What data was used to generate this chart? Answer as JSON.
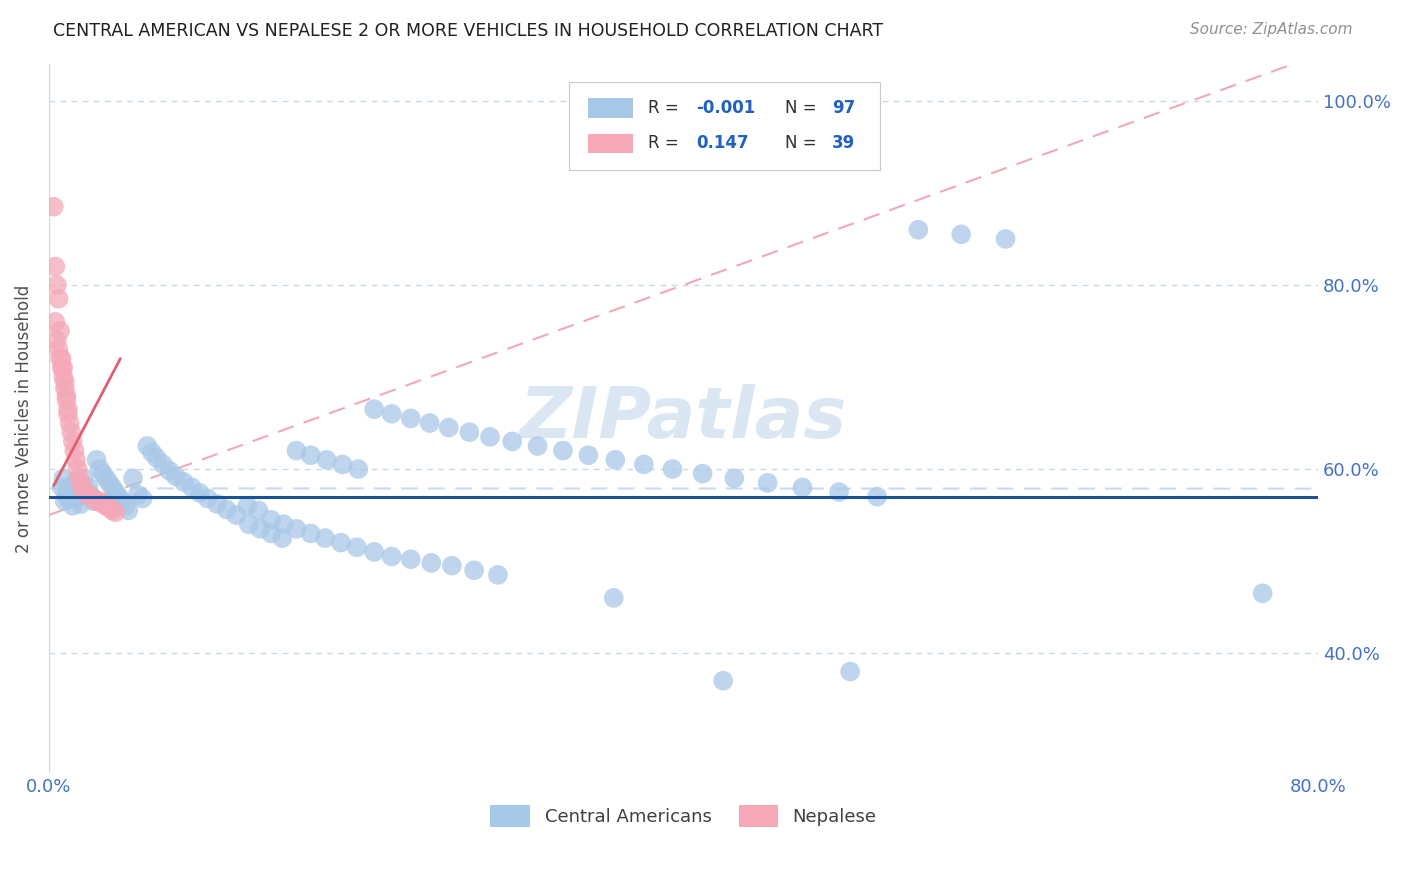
{
  "title": "CENTRAL AMERICAN VS NEPALESE 2 OR MORE VEHICLES IN HOUSEHOLD CORRELATION CHART",
  "source": "Source: ZipAtlas.com",
  "ylabel": "2 or more Vehicles in Household",
  "watermark": "ZIPatlas",
  "xmin": 0.0,
  "xmax": 0.8,
  "ymin": 0.27,
  "ymax": 1.04,
  "x_tick_positions": [
    0.0,
    0.1,
    0.2,
    0.3,
    0.4,
    0.5,
    0.6,
    0.7,
    0.8
  ],
  "x_tick_labels": [
    "0.0%",
    "",
    "",
    "",
    "",
    "",
    "",
    "",
    "80.0%"
  ],
  "y_tick_positions": [
    0.4,
    0.6,
    0.8,
    1.0
  ],
  "y_tick_labels": [
    "40.0%",
    "60.0%",
    "80.0%",
    "100.0%"
  ],
  "color_blue": "#a8c8e8",
  "color_pink": "#f4a8b8",
  "color_hline": "#1a5296",
  "color_trendline_blue": "#c0d8f0",
  "color_trendline_pink": "#f0a0b0",
  "color_axis_labels": "#4472c4",
  "hline_y": 0.57,
  "blue_R": -0.001,
  "blue_N": 97,
  "pink_R": 0.147,
  "pink_N": 39,
  "blue_x": [
    0.008,
    0.009,
    0.01,
    0.011,
    0.012,
    0.013,
    0.014,
    0.015,
    0.016,
    0.017,
    0.018,
    0.019,
    0.02,
    0.022,
    0.024,
    0.025,
    0.027,
    0.028,
    0.03,
    0.032,
    0.034,
    0.036,
    0.038,
    0.04,
    0.042,
    0.044,
    0.046,
    0.048,
    0.05,
    0.053,
    0.056,
    0.059,
    0.062,
    0.065,
    0.068,
    0.072,
    0.076,
    0.08,
    0.085,
    0.09,
    0.095,
    0.1,
    0.106,
    0.112,
    0.118,
    0.125,
    0.132,
    0.14,
    0.148,
    0.156,
    0.165,
    0.174,
    0.184,
    0.194,
    0.205,
    0.216,
    0.228,
    0.241,
    0.254,
    0.268,
    0.283,
    0.126,
    0.133,
    0.14,
    0.147,
    0.156,
    0.165,
    0.175,
    0.185,
    0.195,
    0.205,
    0.216,
    0.228,
    0.24,
    0.252,
    0.265,
    0.278,
    0.292,
    0.308,
    0.324,
    0.34,
    0.357,
    0.375,
    0.393,
    0.412,
    0.432,
    0.453,
    0.475,
    0.498,
    0.522,
    0.548,
    0.575,
    0.603,
    0.356,
    0.425,
    0.505,
    0.765
  ],
  "blue_y": [
    0.58,
    0.59,
    0.565,
    0.572,
    0.568,
    0.574,
    0.581,
    0.56,
    0.585,
    0.572,
    0.568,
    0.577,
    0.562,
    0.59,
    0.575,
    0.58,
    0.57,
    0.565,
    0.61,
    0.6,
    0.595,
    0.59,
    0.585,
    0.58,
    0.575,
    0.57,
    0.565,
    0.56,
    0.555,
    0.59,
    0.572,
    0.568,
    0.625,
    0.618,
    0.612,
    0.605,
    0.598,
    0.592,
    0.586,
    0.58,
    0.574,
    0.568,
    0.562,
    0.556,
    0.55,
    0.56,
    0.555,
    0.545,
    0.54,
    0.535,
    0.53,
    0.525,
    0.52,
    0.515,
    0.51,
    0.505,
    0.502,
    0.498,
    0.495,
    0.49,
    0.485,
    0.54,
    0.535,
    0.53,
    0.525,
    0.62,
    0.615,
    0.61,
    0.605,
    0.6,
    0.665,
    0.66,
    0.655,
    0.65,
    0.645,
    0.64,
    0.635,
    0.63,
    0.625,
    0.62,
    0.615,
    0.61,
    0.605,
    0.6,
    0.595,
    0.59,
    0.585,
    0.58,
    0.575,
    0.57,
    0.86,
    0.855,
    0.85,
    0.46,
    0.37,
    0.38,
    0.465
  ],
  "pink_x": [
    0.003,
    0.004,
    0.005,
    0.006,
    0.007,
    0.008,
    0.009,
    0.01,
    0.011,
    0.012,
    0.013,
    0.014,
    0.015,
    0.016,
    0.017,
    0.018,
    0.019,
    0.02,
    0.021,
    0.022,
    0.024,
    0.026,
    0.028,
    0.03,
    0.032,
    0.034,
    0.036,
    0.038,
    0.04,
    0.042,
    0.004,
    0.005,
    0.006,
    0.007,
    0.008,
    0.009,
    0.01,
    0.011,
    0.012
  ],
  "pink_y": [
    0.885,
    0.82,
    0.8,
    0.785,
    0.75,
    0.72,
    0.71,
    0.695,
    0.68,
    0.665,
    0.65,
    0.64,
    0.63,
    0.62,
    0.61,
    0.6,
    0.59,
    0.585,
    0.58,
    0.575,
    0.573,
    0.57,
    0.568,
    0.565,
    0.565,
    0.562,
    0.56,
    0.558,
    0.555,
    0.553,
    0.76,
    0.74,
    0.73,
    0.72,
    0.71,
    0.7,
    0.688,
    0.675,
    0.66
  ]
}
